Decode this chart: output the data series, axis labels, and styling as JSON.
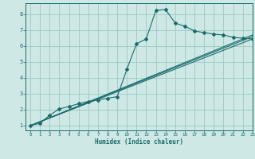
{
  "bg_color": "#cde8e5",
  "grid_color": "#9dc8c5",
  "line_color": "#1a6b6b",
  "xlabel": "Humidex (Indice chaleur)",
  "xlim": [
    -0.5,
    23
  ],
  "ylim": [
    0.7,
    8.7
  ],
  "xticks": [
    0,
    1,
    2,
    3,
    4,
    5,
    6,
    7,
    8,
    9,
    10,
    11,
    12,
    13,
    14,
    15,
    16,
    17,
    18,
    19,
    20,
    21,
    22,
    23
  ],
  "yticks": [
    1,
    2,
    3,
    4,
    5,
    6,
    7,
    8
  ],
  "line1_x": [
    0,
    1,
    2,
    3,
    4,
    5,
    6,
    7,
    8,
    9,
    10,
    11,
    12,
    13,
    14,
    15,
    16,
    17,
    18,
    19,
    20,
    21,
    22,
    23
  ],
  "line1_y": [
    1.0,
    1.15,
    1.65,
    2.05,
    2.2,
    2.38,
    2.52,
    2.62,
    2.72,
    2.82,
    4.55,
    6.15,
    6.45,
    8.25,
    8.3,
    7.45,
    7.25,
    6.95,
    6.85,
    6.75,
    6.7,
    6.55,
    6.5,
    6.45
  ],
  "line2_x": [
    0,
    23
  ],
  "line2_y": [
    1.0,
    6.6
  ],
  "line3_x": [
    0,
    23
  ],
  "line3_y": [
    1.0,
    6.45
  ],
  "line4_x": [
    0,
    23
  ],
  "line4_y": [
    1.0,
    6.7
  ]
}
